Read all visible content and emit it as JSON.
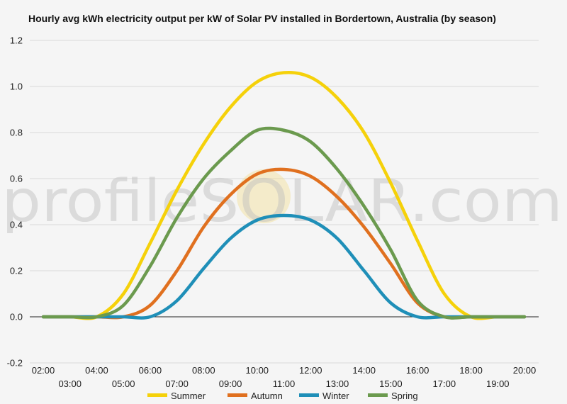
{
  "title": "Hourly avg kWh electricity output per kW of Solar PV installed in Bordertown, Australia (by season)",
  "watermark": "profileSOLAR.com",
  "chart_data": {
    "type": "line",
    "title": "Hourly avg kWh electricity output per kW of Solar PV installed in Bordertown, Australia (by season)",
    "xlabel": "",
    "ylabel": "",
    "ylim": [
      -0.2,
      1.2
    ],
    "yticks": [
      "-0.2",
      "0.0",
      "0.2",
      "0.4",
      "0.6",
      "0.8",
      "1.0",
      "1.2"
    ],
    "yticks_values": [
      -0.2,
      0.0,
      0.2,
      0.4,
      0.6,
      0.8,
      1.0,
      1.2
    ],
    "categories": [
      "02:00",
      "03:00",
      "04:00",
      "05:00",
      "06:00",
      "07:00",
      "08:00",
      "09:00",
      "10:00",
      "11:00",
      "12:00",
      "13:00",
      "14:00",
      "15:00",
      "16:00",
      "17:00",
      "18:00",
      "19:00",
      "20:00"
    ],
    "grid": true,
    "legend_position": "bottom",
    "series": [
      {
        "name": "Summer",
        "color": "#f5d10a",
        "values": [
          0.0,
          0.0,
          0.0,
          0.1,
          0.32,
          0.55,
          0.75,
          0.91,
          1.02,
          1.06,
          1.04,
          0.95,
          0.8,
          0.58,
          0.33,
          0.1,
          0.0,
          0.0,
          0.0
        ]
      },
      {
        "name": "Autumn",
        "color": "#e0701f",
        "values": [
          0.0,
          0.0,
          0.0,
          0.0,
          0.05,
          0.2,
          0.39,
          0.53,
          0.62,
          0.64,
          0.61,
          0.52,
          0.39,
          0.23,
          0.06,
          0.0,
          0.0,
          0.0,
          0.0
        ]
      },
      {
        "name": "Winter",
        "color": "#1f8fb8",
        "values": [
          0.0,
          0.0,
          0.0,
          0.0,
          0.0,
          0.07,
          0.21,
          0.34,
          0.42,
          0.44,
          0.42,
          0.34,
          0.2,
          0.06,
          0.0,
          0.0,
          0.0,
          0.0,
          0.0
        ]
      },
      {
        "name": "Spring",
        "color": "#6b9a4e",
        "values": [
          0.0,
          0.0,
          0.0,
          0.05,
          0.22,
          0.43,
          0.6,
          0.72,
          0.81,
          0.81,
          0.76,
          0.64,
          0.48,
          0.29,
          0.07,
          0.0,
          0.0,
          0.0,
          0.0
        ]
      }
    ]
  }
}
